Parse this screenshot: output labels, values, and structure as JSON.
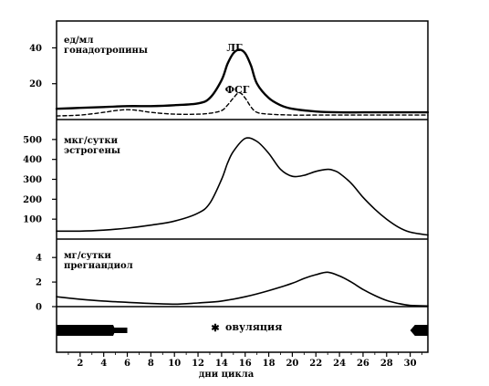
{
  "chart_data": [
    {
      "type": "line",
      "ylabel": "ед/мл",
      "subtitle": "гонадотропины",
      "ylim": [
        0,
        55
      ],
      "yticks": [
        20,
        40
      ],
      "series": [
        {
          "name": "ЛГ",
          "style": "solid",
          "x": [
            0,
            2,
            4,
            6,
            8,
            10,
            12,
            13,
            14,
            14.5,
            15,
            15.5,
            16,
            16.5,
            17,
            18,
            19,
            20,
            22,
            24,
            26,
            28,
            30,
            31.5
          ],
          "y": [
            6,
            6.5,
            7,
            7.5,
            7.5,
            8,
            9,
            12,
            22,
            31,
            37,
            39,
            37,
            30,
            20,
            12,
            8,
            6,
            4.5,
            4,
            4,
            4,
            4,
            4
          ]
        },
        {
          "name": "ФСГ",
          "style": "dashed",
          "x": [
            0,
            2,
            4,
            5,
            6,
            7,
            8,
            10,
            12,
            13,
            14,
            14.5,
            15,
            15.5,
            16,
            16.5,
            17,
            18,
            20,
            22,
            24,
            26,
            28,
            30,
            31.5
          ],
          "y": [
            2,
            2.5,
            4,
            5,
            5.5,
            5,
            4,
            3,
            3,
            3.5,
            5,
            8,
            12,
            15,
            12,
            7,
            4,
            3,
            2.5,
            2.5,
            2.5,
            2.5,
            2.5,
            2.5,
            2.5
          ]
        }
      ]
    },
    {
      "type": "line",
      "ylabel": "мкг/сутки",
      "subtitle": "эстрогены",
      "ylim": [
        0,
        600
      ],
      "yticks": [
        100,
        200,
        300,
        400,
        500
      ],
      "series": [
        {
          "style": "solid",
          "x": [
            0,
            2,
            4,
            6,
            8,
            10,
            12,
            13,
            14,
            14.5,
            15,
            16,
            17,
            18,
            19,
            20,
            21,
            22,
            23,
            23.5,
            24,
            25,
            26,
            27,
            28,
            29,
            30,
            31.5
          ],
          "y": [
            40,
            40,
            45,
            55,
            70,
            90,
            130,
            180,
            300,
            380,
            440,
            505,
            490,
            430,
            350,
            315,
            320,
            340,
            350,
            345,
            330,
            280,
            210,
            150,
            100,
            60,
            35,
            20
          ]
        }
      ]
    },
    {
      "type": "line",
      "ylabel": "мг/сутки",
      "subtitle": "прегнандиол",
      "ylim": [
        0,
        5.5
      ],
      "yticks": [
        0,
        2,
        4
      ],
      "series": [
        {
          "style": "solid",
          "x": [
            0,
            2,
            4,
            6,
            8,
            10,
            12,
            14,
            16,
            18,
            20,
            21,
            22,
            23,
            24,
            25,
            26,
            27,
            28,
            29,
            30,
            31.5
          ],
          "y": [
            0.8,
            0.6,
            0.45,
            0.35,
            0.25,
            0.2,
            0.3,
            0.45,
            0.8,
            1.3,
            1.9,
            2.3,
            2.6,
            2.8,
            2.5,
            2.0,
            1.4,
            0.9,
            0.5,
            0.25,
            0.1,
            0.05
          ]
        }
      ]
    }
  ],
  "bottom_panel": {
    "ovulation_label": "овуляция",
    "ovulation_marker": "✱",
    "ovulation_day": 15,
    "menses_start": [
      0,
      6
    ],
    "menses_next": [
      30,
      31.5
    ]
  },
  "x_axis": {
    "xlabel": "дни цикла",
    "xlim": [
      0,
      31.5
    ],
    "ticks": [
      2,
      4,
      6,
      8,
      10,
      12,
      14,
      16,
      18,
      20,
      22,
      24,
      26,
      28,
      30
    ]
  },
  "annotations": {
    "lh_label": "ЛГ",
    "fsh_label": "ФСГ"
  }
}
